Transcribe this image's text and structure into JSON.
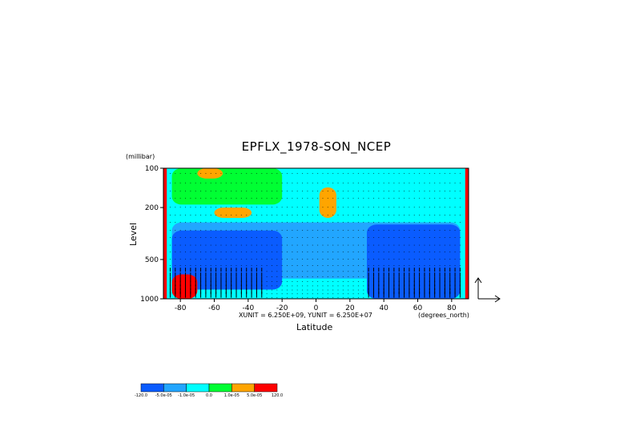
{
  "chart_data": {
    "type": "heatmap",
    "title": "EPFLX_1978-SON_NCEP",
    "xlabel": "Latitude",
    "ylabel": "Level",
    "y_units": "(millibar)",
    "x_units": "(degrees_north)",
    "xlim": [
      -90,
      90
    ],
    "ylim": [
      1000,
      100
    ],
    "y_scale": "log",
    "x_ticks": [
      "-80",
      "-60",
      "-40",
      "-20",
      "0",
      "20",
      "40",
      "60",
      "80"
    ],
    "x_tick_values": [
      -80,
      -60,
      -40,
      -20,
      0,
      20,
      40,
      60,
      80
    ],
    "y_ticks": [
      "100",
      "200",
      "500",
      "1000"
    ],
    "y_tick_values": [
      100,
      200,
      500,
      1000
    ],
    "vector_note": "XUNIT = 6.250E+09, YUNIT = 6.250E+07",
    "colorbar": {
      "labels": [
        "-120.0",
        "-5.0e-05",
        "-1.0e-05",
        "0.0",
        "1.0e-05",
        "5.0e-05",
        "120.0"
      ],
      "colors": [
        "#0a5cff",
        "#22a6ff",
        "#00ffff",
        "#00ff33",
        "#ffa500",
        "#ff0000"
      ]
    },
    "regions": [
      {
        "level": "near_zero",
        "color": "#00ffff",
        "desc": "background field"
      },
      {
        "level": "low_negative",
        "color": "#22a6ff",
        "lat_range": [
          -85,
          85
        ],
        "p_range": [
          260,
          700
        ]
      },
      {
        "level": "strong_negative",
        "color": "#0a5cff",
        "lat_range": [
          -85,
          -20
        ],
        "p_range": [
          300,
          850
        ]
      },
      {
        "level": "strong_negative",
        "color": "#0a5cff",
        "lat_range": [
          30,
          85
        ],
        "p_range": [
          270,
          1000
        ]
      },
      {
        "level": "positive",
        "color": "#00ff33",
        "lat_range": [
          -85,
          -20
        ],
        "p_range": [
          100,
          190
        ]
      },
      {
        "level": "strong_positive",
        "color": "#ffa500",
        "lat_range": [
          -70,
          -55
        ],
        "p_range": [
          100,
          120
        ]
      },
      {
        "level": "strong_positive",
        "color": "#ffa500",
        "lat_range": [
          -60,
          -38
        ],
        "p_range": [
          200,
          240
        ]
      },
      {
        "level": "strong_positive",
        "color": "#ffa500",
        "lat_range": [
          2,
          12
        ],
        "p_range": [
          140,
          240
        ]
      },
      {
        "level": "strong_positive",
        "color": "#ff0000",
        "lat_range": [
          -85,
          -70
        ],
        "p_range": [
          650,
          1000
        ]
      }
    ]
  }
}
